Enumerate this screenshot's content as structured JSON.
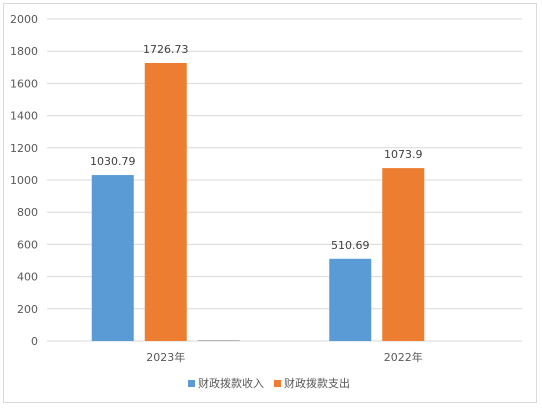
{
  "chart_data": {
    "type": "bar",
    "categories": [
      "2023年",
      "2022年"
    ],
    "series": [
      {
        "name": "财政拨款收入",
        "values": [
          1030.79,
          510.69
        ],
        "color": "#5b9bd5",
        "labels": [
          "1030.79",
          "510.69"
        ]
      },
      {
        "name": "财政拨款支出",
        "values": [
          1726.73,
          1073.9
        ],
        "color": "#ed7d31",
        "labels": [
          "1726.73",
          "1073.9"
        ]
      },
      {
        "name": "",
        "values": [
          5,
          null
        ],
        "color": "#a5a5a5",
        "labels": [
          "",
          ""
        ]
      }
    ],
    "ylim": [
      0,
      2000
    ],
    "yticks": [
      0,
      200,
      400,
      600,
      800,
      1000,
      1200,
      1400,
      1600,
      1800,
      2000
    ],
    "grid": true,
    "legend": "bottom"
  }
}
